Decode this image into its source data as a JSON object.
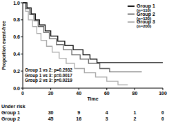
{
  "chart_data": {
    "type": "line",
    "line_style": "step",
    "y_label": "Proportion event-free",
    "x_label": "Time",
    "xlim": [
      0,
      100
    ],
    "xticks": [
      0,
      20,
      40,
      60,
      80,
      100
    ],
    "ylim": [
      0,
      1
    ],
    "yticks": [
      {
        "value": 0,
        "label": "0.0"
      },
      0.2,
      0.4,
      0.6,
      0.8,
      {
        "value": 1,
        "label": "1.0"
      }
    ],
    "legend": "upper right",
    "series": [
      {
        "name": "Group 1",
        "n_label": "(n=110)",
        "color": "#000000",
        "x": [
          0,
          3,
          3,
          6,
          6,
          9,
          9,
          12,
          12,
          16,
          16,
          20,
          20,
          25,
          25,
          30,
          30,
          36,
          36,
          43,
          43,
          48,
          48,
          53,
          53,
          100
        ],
        "values": [
          1,
          1,
          0.94,
          0.94,
          0.87,
          0.87,
          0.8,
          0.8,
          0.74,
          0.74,
          0.67,
          0.67,
          0.61,
          0.61,
          0.55,
          0.55,
          0.5,
          0.5,
          0.45,
          0.45,
          0.39,
          0.39,
          0.34,
          0.34,
          0.3,
          0.3
        ]
      },
      {
        "name": "Group 2",
        "n_label": "(n=120)",
        "color": "#666666",
        "x": [
          0,
          2,
          2,
          5,
          5,
          8,
          8,
          11,
          11,
          15,
          15,
          19,
          19,
          24,
          24,
          29,
          29,
          35,
          35,
          41,
          41,
          47,
          47,
          55,
          55,
          62,
          62,
          85
        ],
        "values": [
          1,
          1,
          0.93,
          0.93,
          0.86,
          0.86,
          0.79,
          0.79,
          0.72,
          0.72,
          0.65,
          0.65,
          0.58,
          0.58,
          0.51,
          0.51,
          0.45,
          0.45,
          0.39,
          0.39,
          0.34,
          0.34,
          0.29,
          0.29,
          0.23,
          0.23,
          0.19,
          0.19
        ]
      },
      {
        "name": "Group 3",
        "n_label": "(n=200)",
        "color": "#aaaaaa",
        "x": [
          0,
          2,
          2,
          4,
          4,
          7,
          7,
          10,
          10,
          13,
          13,
          17,
          17,
          21,
          21,
          26,
          26,
          31,
          31,
          37,
          37,
          44,
          44,
          52,
          52,
          60,
          60,
          68,
          68,
          75
        ],
        "values": [
          1,
          1,
          0.9,
          0.9,
          0.8,
          0.8,
          0.72,
          0.72,
          0.64,
          0.64,
          0.56,
          0.56,
          0.49,
          0.49,
          0.42,
          0.42,
          0.35,
          0.35,
          0.29,
          0.29,
          0.23,
          0.23,
          0.18,
          0.18,
          0.13,
          0.13,
          0.08,
          0.08,
          0.04,
          0.04
        ]
      }
    ],
    "annotations": [
      "Group 1 vs 2: p=0.2932",
      "Group 1 vs 3: p=0.0017",
      "Group 2 vs 3: p=0.0219"
    ],
    "risk_table": {
      "title": "Under risk",
      "x": [
        20,
        40,
        60,
        80,
        100
      ],
      "rows": [
        {
          "name": "Group 1",
          "values": [
            30,
            9,
            4,
            1,
            0
          ]
        },
        {
          "name": "Group 2",
          "values": [
            45,
            16,
            3,
            2,
            0
          ]
        }
      ]
    }
  }
}
